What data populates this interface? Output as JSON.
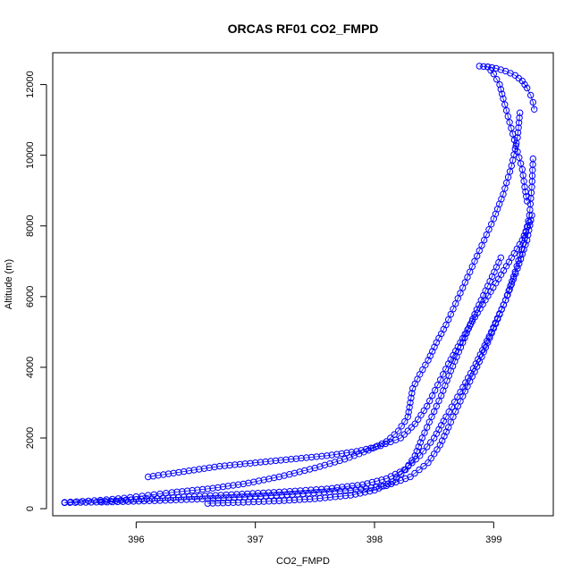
{
  "chart_data": {
    "type": "scatter",
    "title": "ORCAS RF01 CO2_FMPD",
    "xlabel": "CO2_FMPD",
    "ylabel": "Altitude (m)",
    "xlim": [
      395.3,
      399.5
    ],
    "ylim": [
      -200,
      12900
    ],
    "xticks": [
      396,
      397,
      398,
      399
    ],
    "yticks": [
      0,
      2000,
      4000,
      6000,
      8000,
      10000,
      12000
    ],
    "grid": false,
    "legend": "none",
    "marker": "open-circle",
    "color": "#0000ff",
    "series": [
      {
        "x": [
          395.4,
          395.5,
          395.7,
          395.9,
          396.1,
          396.3,
          396.6,
          396.9,
          397.2,
          397.5,
          397.75,
          397.95,
          398.1,
          398.2,
          398.28,
          398.3,
          398.32,
          398.38,
          398.45,
          398.52,
          398.6,
          398.68,
          398.76,
          398.84,
          398.92,
          399.0,
          399.08,
          399.15,
          399.2,
          399.22
        ],
        "y": [
          180,
          200,
          240,
          300,
          380,
          460,
          560,
          700,
          900,
          1150,
          1400,
          1650,
          1900,
          2200,
          2600,
          3000,
          3400,
          3800,
          4200,
          4700,
          5200,
          5800,
          6400,
          7000,
          7600,
          8200,
          8900,
          9700,
          10500,
          11200
        ]
      },
      {
        "x": [
          395.4,
          395.8,
          396.2,
          396.6,
          397.0,
          397.4,
          397.8,
          398.1,
          398.3,
          398.45,
          398.55,
          398.62,
          398.7,
          398.8,
          398.9,
          399.0,
          399.1,
          399.18,
          399.25,
          399.3,
          399.32,
          399.33
        ],
        "y": [
          170,
          190,
          230,
          280,
          340,
          420,
          520,
          650,
          900,
          1300,
          1800,
          2300,
          2900,
          3600,
          4300,
          5100,
          5900,
          6700,
          7500,
          8300,
          9100,
          9900
        ]
      },
      {
        "x": [
          395.7,
          396.0,
          396.4,
          396.8,
          397.2,
          397.6,
          397.9,
          398.1,
          398.25,
          398.38,
          398.5,
          398.6,
          398.72,
          398.85,
          398.98,
          399.1,
          399.2,
          399.28,
          399.32
        ],
        "y": [
          200,
          260,
          330,
          400,
          470,
          560,
          680,
          850,
          1100,
          1500,
          2000,
          2600,
          3300,
          4100,
          5000,
          5900,
          6800,
          7600,
          8300
        ]
      },
      {
        "x": [
          396.1,
          396.4,
          396.7,
          397.0,
          397.3,
          397.6,
          397.85,
          398.05,
          398.22,
          398.34,
          398.44,
          398.53,
          398.62,
          398.72,
          398.82,
          398.93,
          399.04,
          399.15,
          399.24,
          399.3
        ],
        "y": [
          900,
          1050,
          1200,
          1300,
          1400,
          1500,
          1620,
          1780,
          2000,
          2400,
          2900,
          3500,
          4100,
          4700,
          5300,
          5900,
          6500,
          7100,
          7600,
          8100
        ]
      },
      {
        "x": [
          396.6,
          396.9,
          397.2,
          397.5,
          397.8,
          398.0,
          398.15,
          398.26,
          398.34,
          398.4,
          398.48,
          398.56,
          398.64,
          398.74,
          398.84,
          398.95,
          399.06
        ],
        "y": [
          150,
          180,
          220,
          280,
          380,
          520,
          760,
          1100,
          1500,
          2000,
          2600,
          3200,
          3900,
          4700,
          5500,
          6300,
          7100
        ]
      },
      {
        "x": [
          398.88,
          398.95,
          399.02,
          399.1,
          399.18,
          399.24,
          399.28,
          399.31,
          399.33,
          399.34
        ],
        "y": [
          12520,
          12500,
          12460,
          12380,
          12260,
          12100,
          11900,
          11700,
          11500,
          11300
        ]
      },
      {
        "x": [
          398.95,
          399.0,
          399.05,
          399.08,
          399.12,
          399.16,
          399.2,
          399.24,
          399.26,
          399.28
        ],
        "y": [
          12500,
          12300,
          12000,
          11600,
          11100,
          10600,
          10100,
          9600,
          9100,
          8700
        ]
      }
    ]
  }
}
